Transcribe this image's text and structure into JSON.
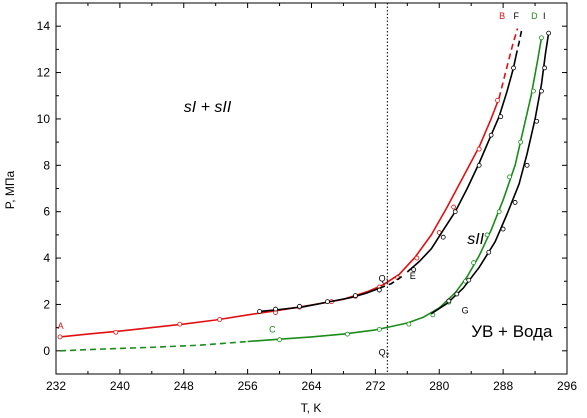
{
  "chart_data": {
    "type": "line",
    "xlabel": "T, K",
    "ylabel": "P, МПа",
    "xlim": [
      232,
      296
    ],
    "ylim": [
      -1,
      15
    ],
    "xticks": [
      232,
      240,
      248,
      256,
      264,
      272,
      280,
      288,
      296
    ],
    "yticks": [
      0,
      2,
      4,
      6,
      8,
      10,
      12,
      14
    ],
    "vline": {
      "x": 273.5,
      "style": "dotted"
    },
    "annotations": [
      {
        "text": "sI + sII",
        "x": 248,
        "y": 10.3,
        "italic": true
      },
      {
        "text": "sII",
        "x": 283.5,
        "y": 4.6,
        "italic": true
      },
      {
        "text": "УВ + Вода",
        "x": 284,
        "y": 0.6,
        "italic": false
      }
    ],
    "point_labels": [
      {
        "text": "A",
        "x": 232.2,
        "y": 0.95,
        "color": "#e01010"
      },
      {
        "text": "B",
        "x": 287.5,
        "y": 14.3,
        "color": "#e01010"
      },
      {
        "text": "C",
        "x": 258.7,
        "y": 0.78,
        "color": "#1a8c1a"
      },
      {
        "text": "D",
        "x": 291.5,
        "y": 14.3,
        "color": "#1a8c1a"
      },
      {
        "text": "F",
        "x": 289.3,
        "y": 14.3,
        "color": "#000000"
      },
      {
        "text": "I",
        "x": 293,
        "y": 14.3,
        "color": "#000000"
      },
      {
        "text": "E",
        "x": 276.3,
        "y": 3.1,
        "color": "#000000"
      },
      {
        "text": "G",
        "x": 282.8,
        "y": 1.6,
        "color": "#000000"
      },
      {
        "text": "Q₁",
        "x": 272.4,
        "y": 3.0,
        "color": "#000000"
      },
      {
        "text": "Q₂",
        "x": 272.4,
        "y": -0.2,
        "color": "#000000"
      }
    ],
    "series": [
      {
        "color": "#e01010",
        "solid": [
          [
            232.5,
            0.6
          ],
          [
            236,
            0.72
          ],
          [
            240,
            0.85
          ],
          [
            244,
            1.0
          ],
          [
            248,
            1.15
          ],
          [
            252,
            1.33
          ],
          [
            256,
            1.55
          ],
          [
            260,
            1.75
          ],
          [
            264,
            1.97
          ],
          [
            268,
            2.22
          ],
          [
            271,
            2.55
          ],
          [
            273,
            2.85
          ],
          [
            275,
            3.3
          ],
          [
            277,
            4.05
          ],
          [
            279,
            5.0
          ],
          [
            281,
            6.2
          ],
          [
            283,
            7.5
          ],
          [
            285,
            8.8
          ],
          [
            286.5,
            10.0
          ],
          [
            287.5,
            10.9
          ]
        ],
        "dashed": [
          [
            287.5,
            10.9
          ],
          [
            288.3,
            12.0
          ],
          [
            289.2,
            13.2
          ],
          [
            289.8,
            13.9
          ]
        ],
        "markers": [
          [
            232.5,
            0.6
          ],
          [
            239.5,
            0.8
          ],
          [
            247.5,
            1.15
          ],
          [
            252.5,
            1.35
          ],
          [
            259.5,
            1.65
          ],
          [
            262.5,
            1.88
          ],
          [
            266.5,
            2.12
          ],
          [
            269.5,
            2.35
          ],
          [
            272.5,
            2.75
          ],
          [
            274.8,
            3.15
          ],
          [
            277.2,
            4.0
          ],
          [
            280,
            5.1
          ],
          [
            281.8,
            6.2
          ],
          [
            285,
            8.7
          ],
          [
            287.3,
            10.8
          ]
        ]
      },
      {
        "color": "#000000",
        "solid": [
          [
            257.5,
            1.7
          ],
          [
            260,
            1.78
          ],
          [
            263,
            1.9
          ],
          [
            266,
            2.1
          ],
          [
            269,
            2.3
          ],
          [
            271,
            2.5
          ],
          [
            272.5,
            2.7
          ]
        ],
        "dashed": [
          [
            272.5,
            2.7
          ],
          [
            274,
            2.9
          ],
          [
            275.3,
            3.2
          ]
        ],
        "markers": [
          [
            257.5,
            1.7
          ],
          [
            259.5,
            1.8
          ],
          [
            262.5,
            1.92
          ],
          [
            266,
            2.12
          ],
          [
            269.5,
            2.38
          ],
          [
            272.5,
            2.62
          ]
        ],
        "markers_open": false
      },
      {
        "color": "#000000",
        "solid": [
          [
            276,
            3.4
          ],
          [
            277.5,
            3.85
          ],
          [
            279,
            4.4
          ],
          [
            280.5,
            5.2
          ],
          [
            282,
            6.0
          ],
          [
            283.5,
            7.0
          ],
          [
            285,
            8.1
          ],
          [
            286.5,
            9.3
          ],
          [
            287.5,
            10.1
          ],
          [
            288.5,
            11.2
          ],
          [
            289.3,
            12.2
          ],
          [
            289.6,
            12.7
          ]
        ],
        "dashed": [
          [
            289.6,
            12.7
          ],
          [
            290,
            13.3
          ],
          [
            290.3,
            13.8
          ]
        ],
        "markers": [
          [
            276.8,
            3.5
          ],
          [
            280.5,
            4.9
          ],
          [
            282,
            6.0
          ],
          [
            285,
            8.0
          ],
          [
            286.5,
            9.3
          ],
          [
            287.7,
            10.1
          ],
          [
            289.3,
            12.2
          ]
        ]
      },
      {
        "color": "#1a8c1a",
        "solid": [
          [
            256,
            0.4
          ],
          [
            260,
            0.5
          ],
          [
            264,
            0.6
          ],
          [
            268,
            0.72
          ],
          [
            272,
            0.9
          ],
          [
            274,
            1.05
          ],
          [
            276,
            1.2
          ],
          [
            278,
            1.45
          ],
          [
            280,
            1.85
          ],
          [
            282,
            2.5
          ],
          [
            283.5,
            3.2
          ],
          [
            285,
            4.1
          ],
          [
            286.5,
            5.2
          ],
          [
            288,
            6.5
          ],
          [
            289.5,
            8.0
          ],
          [
            290.5,
            9.5
          ],
          [
            291.5,
            11.0
          ],
          [
            292.3,
            12.5
          ],
          [
            292.8,
            13.5
          ]
        ],
        "dashed": [
          [
            232.5,
            0.0
          ],
          [
            238,
            0.08
          ],
          [
            244,
            0.15
          ],
          [
            250,
            0.24
          ],
          [
            256,
            0.4
          ]
        ],
        "markers": [
          [
            260,
            0.48
          ],
          [
            268.5,
            0.72
          ],
          [
            272.5,
            0.92
          ],
          [
            276.2,
            1.15
          ],
          [
            279.2,
            1.55
          ],
          [
            281.2,
            2.1
          ],
          [
            283.3,
            3.0
          ],
          [
            284.3,
            3.8
          ],
          [
            286,
            5.0
          ],
          [
            287.5,
            6.0
          ],
          [
            288.8,
            7.5
          ],
          [
            290.2,
            9.0
          ],
          [
            291.8,
            11.2
          ],
          [
            292.8,
            13.5
          ]
        ]
      },
      {
        "color": "#000000",
        "solid": [
          [
            279,
            1.6
          ],
          [
            281,
            2.05
          ],
          [
            283,
            2.7
          ],
          [
            285,
            3.6
          ],
          [
            287,
            4.7
          ],
          [
            288.5,
            5.9
          ],
          [
            290,
            7.2
          ],
          [
            291,
            8.5
          ],
          [
            292,
            10.0
          ],
          [
            292.8,
            11.5
          ],
          [
            293.3,
            12.8
          ],
          [
            293.7,
            13.7
          ]
        ],
        "dashed": [],
        "markers": [
          [
            281.2,
            2.15
          ],
          [
            282.2,
            2.45
          ],
          [
            283.7,
            3.05
          ],
          [
            286.2,
            4.25
          ],
          [
            288,
            5.25
          ],
          [
            289.5,
            6.4
          ],
          [
            291,
            8.0
          ],
          [
            292.2,
            9.9
          ],
          [
            292.8,
            11.2
          ],
          [
            293.2,
            12.2
          ],
          [
            293.7,
            13.7
          ]
        ]
      }
    ]
  }
}
